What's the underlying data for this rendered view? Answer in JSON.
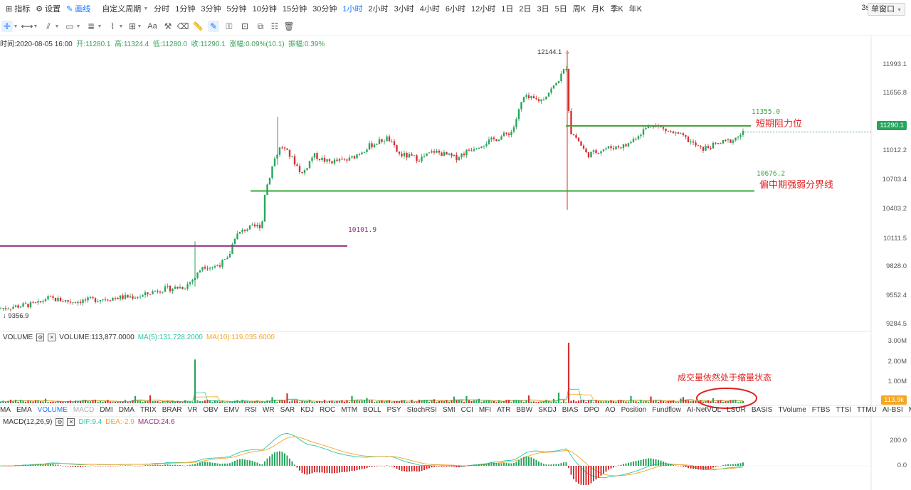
{
  "toolbar": {
    "indicators_label": "指标",
    "settings_label": "设置",
    "drawing_label": "画线",
    "custom_period_label": "自定义周期",
    "periods": [
      "分时",
      "1分钟",
      "3分钟",
      "5分钟",
      "10分钟",
      "15分钟",
      "30分钟",
      "1小时",
      "2小时",
      "3小时",
      "4小时",
      "6小时",
      "12小时",
      "1日",
      "2日",
      "3日",
      "5日",
      "周K",
      "月K",
      "季K",
      "年K"
    ],
    "active_period": "1小时",
    "refresh_interval": "3s",
    "window_mode": "单窗口"
  },
  "ohlc": {
    "time": "时间:2020-08-05 16:00",
    "open": "开:11280.1",
    "high": "高:11324.4",
    "low": "低:11280.0",
    "close": "收:11290.1",
    "change": "涨幅:0.09%(10.1)",
    "amplitude": "振幅:0.39%"
  },
  "price_axis": {
    "ticks": [
      "11993.1",
      "11656.8",
      "11012.2",
      "10703.4",
      "10403.2",
      "10111.5",
      "9828.0",
      "9552.4",
      "9284.5"
    ],
    "current_price": "11290.1"
  },
  "annotations": {
    "high_label": "12144.1",
    "low_label": "9356.9",
    "resistance_value": "11355.0",
    "resistance_text": "短期阻力位",
    "midline_value": "10676.2",
    "midline_text": "偏中期强弱分界线",
    "purple_value": "10101.9",
    "volume_note": "成交量依然处于缩量状态"
  },
  "volume_panel": {
    "name": "VOLUME",
    "value": "VOLUME:113,877.0000",
    "ma5": "MA(5):131,728.2000",
    "ma10": "MA(10):119,035.6000",
    "ticks": [
      "3.00M",
      "2.00M",
      "1.00M"
    ],
    "current": "113.9k"
  },
  "indicator_tabs": [
    "MA",
    "EMA",
    "VOLUME",
    "MACD",
    "DMI",
    "DMA",
    "TRIX",
    "BRAR",
    "VR",
    "OBV",
    "EMV",
    "RSI",
    "WR",
    "SAR",
    "KDJ",
    "ROC",
    "MTM",
    "BOLL",
    "PSY",
    "StochRSI",
    "SMI",
    "CCI",
    "MFI",
    "ATR",
    "BBW",
    "SKDJ",
    "BIAS",
    "DPO",
    "AO",
    "Position",
    "Fundflow",
    "AI-NetVOL",
    "LSUR",
    "BASIS",
    "TVolume",
    "FTBS",
    "TTSI",
    "TTMU",
    "AI-BSI",
    "MLR"
  ],
  "macd_panel": {
    "name": "MACD(12,26,9)",
    "dif": "DIF:9.4",
    "dea": "DEA:-2.9",
    "macd": "MACD:24.6",
    "ticks": [
      "200.0",
      "0.0"
    ]
  },
  "colors": {
    "up": "#26a65b",
    "down": "#d63031",
    "accent": "#1677ff",
    "support_line": "#3aa53a",
    "purple_line": "#9b2d83",
    "note_red": "#e02020",
    "ma5": "#26c6a6",
    "ma10": "#f5a623"
  }
}
